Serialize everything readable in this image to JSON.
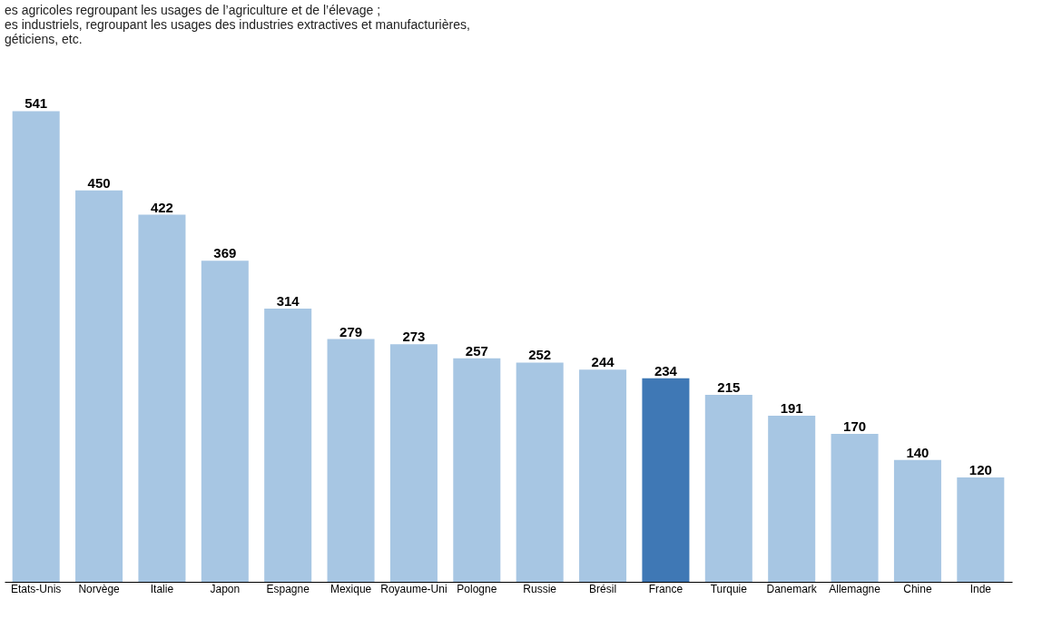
{
  "chart_data": {
    "type": "bar",
    "annotations": [
      "es agricoles regroupant les usages de l’agriculture et de l’élevage ;",
      "es industriels, regroupant les usages des industries extractives et manufacturières,",
      "géticiens, etc."
    ],
    "categories": [
      "Etats-Unis",
      "Norvège",
      "Italie",
      "Japon",
      "Espagne",
      "Mexique",
      "Royaume-Uni",
      "Pologne",
      "Russie",
      "Brésil",
      "France",
      "Turquie",
      "Danemark",
      "Allemagne",
      "Chine",
      "Inde"
    ],
    "values": [
      541,
      450,
      422,
      369,
      314,
      279,
      273,
      257,
      252,
      244,
      234,
      215,
      191,
      170,
      140,
      120
    ],
    "colors": [
      "#a7c6e3",
      "#a7c6e3",
      "#a7c6e3",
      "#a7c6e3",
      "#a7c6e3",
      "#a7c6e3",
      "#a7c6e3",
      "#a7c6e3",
      "#a7c6e3",
      "#a7c6e3",
      "#3f78b5",
      "#a7c6e3",
      "#a7c6e3",
      "#a7c6e3",
      "#a7c6e3",
      "#a7c6e3"
    ],
    "data_labels": true
  }
}
